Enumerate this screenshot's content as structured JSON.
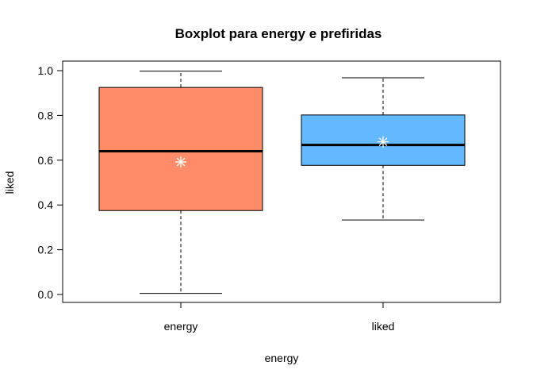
{
  "chart_data": {
    "type": "boxplot",
    "title": "Boxplot para  energy e prefiridas",
    "xlabel": "energy",
    "ylabel": "liked",
    "ylim": [
      -0.03,
      1.05
    ],
    "yticks": [
      "0.0",
      "0.2",
      "0.4",
      "0.6",
      "0.8",
      "1.0"
    ],
    "categories": [
      "energy",
      "liked"
    ],
    "boxes": [
      {
        "category": "energy",
        "min": 0.005,
        "q1": 0.375,
        "median": 0.64,
        "q3": 0.925,
        "max": 0.998,
        "mean": 0.592,
        "color": "#FF8C69"
      },
      {
        "category": "liked",
        "min": 0.333,
        "q1": 0.577,
        "median": 0.668,
        "q3": 0.802,
        "max": 0.968,
        "mean": 0.682,
        "color": "#63B8FF"
      }
    ],
    "mean_marker_color": "#ffffff",
    "grid": false,
    "legend": "none"
  }
}
